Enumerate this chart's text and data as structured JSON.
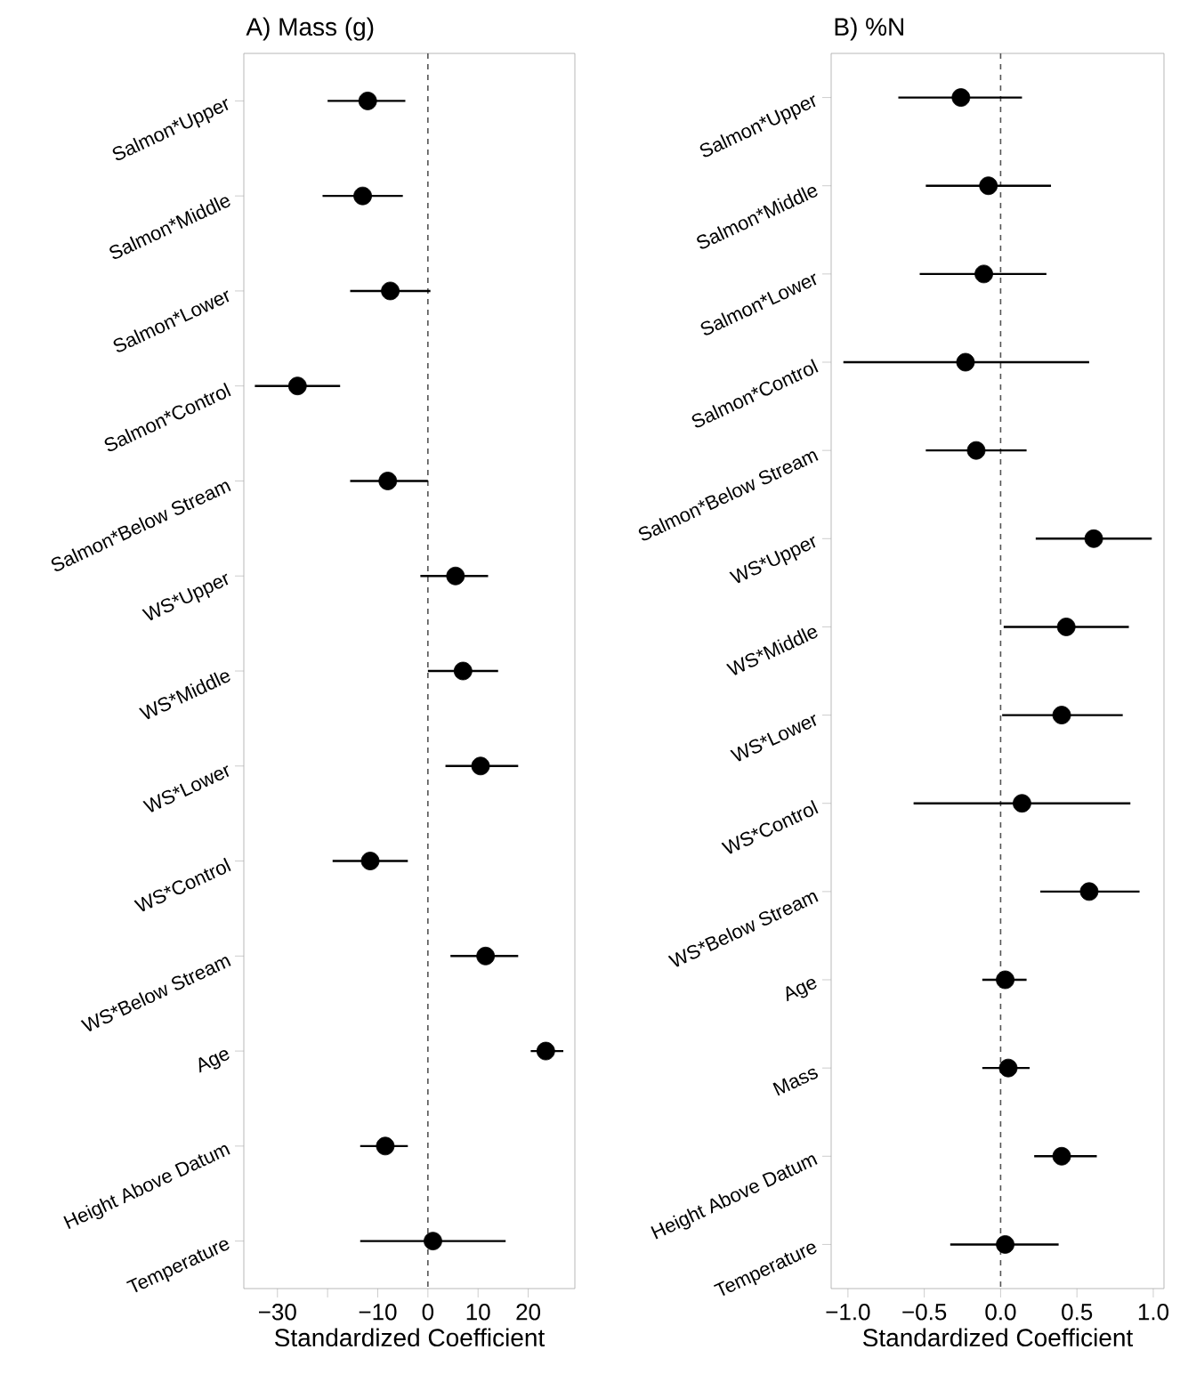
{
  "chart_data": [
    {
      "type": "scatter",
      "orientation": "horizontal",
      "title": "A) Mass (g)",
      "xlabel": "Standardized Coefficient",
      "color": "#000000",
      "categories": [
        "Salmon*Upper",
        "Salmon*Middle",
        "Salmon*Lower",
        "Salmon*Control",
        "Salmon*Below Stream",
        "WS*Upper",
        "WS*Middle",
        "WS*Lower",
        "WS*Control",
        "WS*Below Stream",
        "Age",
        "Height Above Datum",
        "Temperature"
      ],
      "values": [
        -12,
        -13,
        -7.5,
        -26,
        -8,
        5.5,
        7,
        10.5,
        -11.5,
        11.5,
        23.5,
        -8.5,
        1
      ],
      "errors": [
        [
          -20,
          -4.5
        ],
        [
          -21,
          -5
        ],
        [
          -15.5,
          0.5
        ],
        [
          -34.5,
          -17.5
        ],
        [
          -15.5,
          0
        ],
        [
          -1.5,
          12
        ],
        [
          0,
          14
        ],
        [
          3.5,
          18
        ],
        [
          -19,
          -4
        ],
        [
          4.5,
          18
        ],
        [
          20.5,
          27
        ],
        [
          -13.5,
          -4
        ],
        [
          -13.5,
          15.5
        ]
      ],
      "xlim": [
        -36.7,
        29.3
      ],
      "xticks": [
        {
          "value": -30,
          "label": "−30"
        },
        {
          "value": -20,
          "label": null
        },
        {
          "value": -10,
          "label": "−10"
        },
        0,
        10,
        20
      ],
      "ref_lines": [
        {
          "axis": "x",
          "value": 0,
          "line_style": "dashed",
          "color": "#555555"
        }
      ]
    },
    {
      "type": "scatter",
      "orientation": "horizontal",
      "title": "B) %N",
      "xlabel": "Standardized Coefficient",
      "color": "#000000",
      "categories": [
        "Salmon*Upper",
        "Salmon*Middle",
        "Salmon*Lower",
        "Salmon*Control",
        "Salmon*Below Stream",
        "WS*Upper",
        "WS*Middle",
        "WS*Lower",
        "WS*Control",
        "WS*Below Stream",
        "Age",
        "Mass",
        "Height Above Datum",
        "Temperature"
      ],
      "values": [
        -0.26,
        -0.08,
        -0.11,
        -0.23,
        -0.16,
        0.61,
        0.43,
        0.4,
        0.14,
        0.58,
        0.03,
        0.05,
        0.4,
        0.03
      ],
      "errors": [
        [
          -0.67,
          0.14
        ],
        [
          -0.49,
          0.33
        ],
        [
          -0.53,
          0.3
        ],
        [
          -1.03,
          0.58
        ],
        [
          -0.49,
          0.17
        ],
        [
          0.23,
          0.99
        ],
        [
          0.02,
          0.84
        ],
        [
          0.01,
          0.8
        ],
        [
          -0.57,
          0.85
        ],
        [
          0.26,
          0.91
        ],
        [
          -0.12,
          0.17
        ],
        [
          -0.12,
          0.19
        ],
        [
          0.22,
          0.63
        ],
        [
          -0.33,
          0.38
        ]
      ],
      "xlim": [
        -1.11,
        1.07
      ],
      "xticks": [
        {
          "value": -1,
          "label": "−1.0"
        },
        {
          "value": -0.5,
          "label": "−0.5"
        },
        {
          "value": 0,
          "label": "0.0"
        },
        {
          "value": 0.5,
          "label": "0.5"
        },
        {
          "value": 1,
          "label": "1.0"
        }
      ],
      "ref_lines": [
        {
          "axis": "x",
          "value": 0,
          "line_style": "dashed",
          "color": "#555555"
        }
      ]
    }
  ]
}
